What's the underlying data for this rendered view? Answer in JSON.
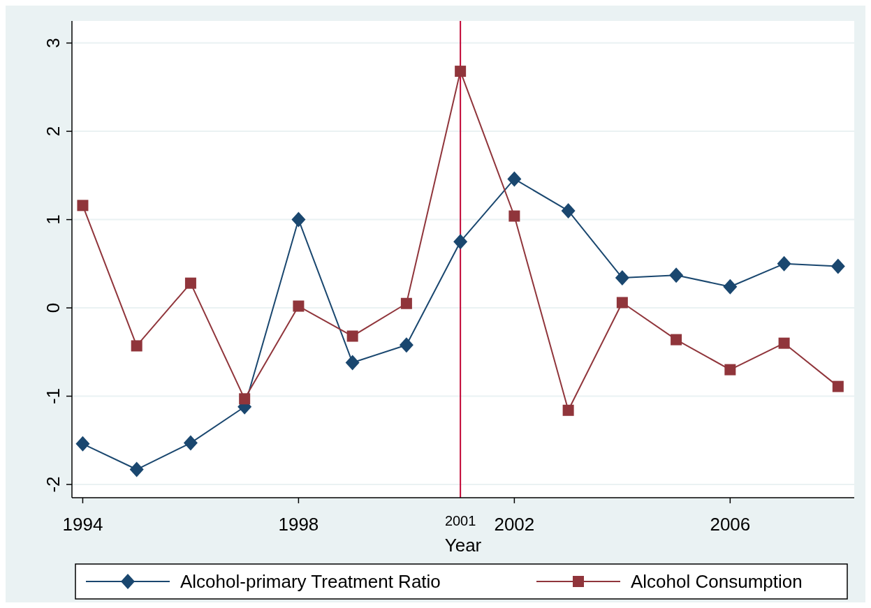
{
  "chart_data": {
    "type": "line",
    "xlabel": "Year",
    "x": [
      1994,
      1995,
      1996,
      1997,
      1998,
      1999,
      2000,
      2001,
      2002,
      2003,
      2004,
      2005,
      2006,
      2007,
      2008
    ],
    "series": [
      {
        "name": "Alcohol-primary Treatment Ratio",
        "color": "#1a476f",
        "marker": "diamond",
        "values": [
          -1.54,
          -1.83,
          -1.53,
          -1.12,
          1.0,
          -0.62,
          -0.42,
          0.75,
          1.46,
          1.1,
          0.34,
          0.37,
          0.24,
          0.5,
          0.47
        ]
      },
      {
        "name": "Alcohol Consumption",
        "color": "#90353b",
        "marker": "square",
        "values": [
          1.16,
          -0.43,
          0.28,
          -1.03,
          0.02,
          -0.32,
          0.05,
          2.68,
          1.04,
          -1.16,
          0.06,
          -0.36,
          -0.7,
          -0.4,
          -0.89
        ]
      }
    ],
    "xlim": [
      1993.8,
      2008.3
    ],
    "xticks": [
      1994,
      1998,
      2002,
      2006
    ],
    "ylim": [
      -2.15,
      3.25
    ],
    "yticks": [
      -2,
      -1,
      0,
      1,
      2,
      3
    ],
    "ref_lines": [
      {
        "axis": "x",
        "value": 2001,
        "label": "2001",
        "color": "#c10534"
      }
    ],
    "grid": "y",
    "legend": "bottom",
    "line_style": "solid"
  }
}
